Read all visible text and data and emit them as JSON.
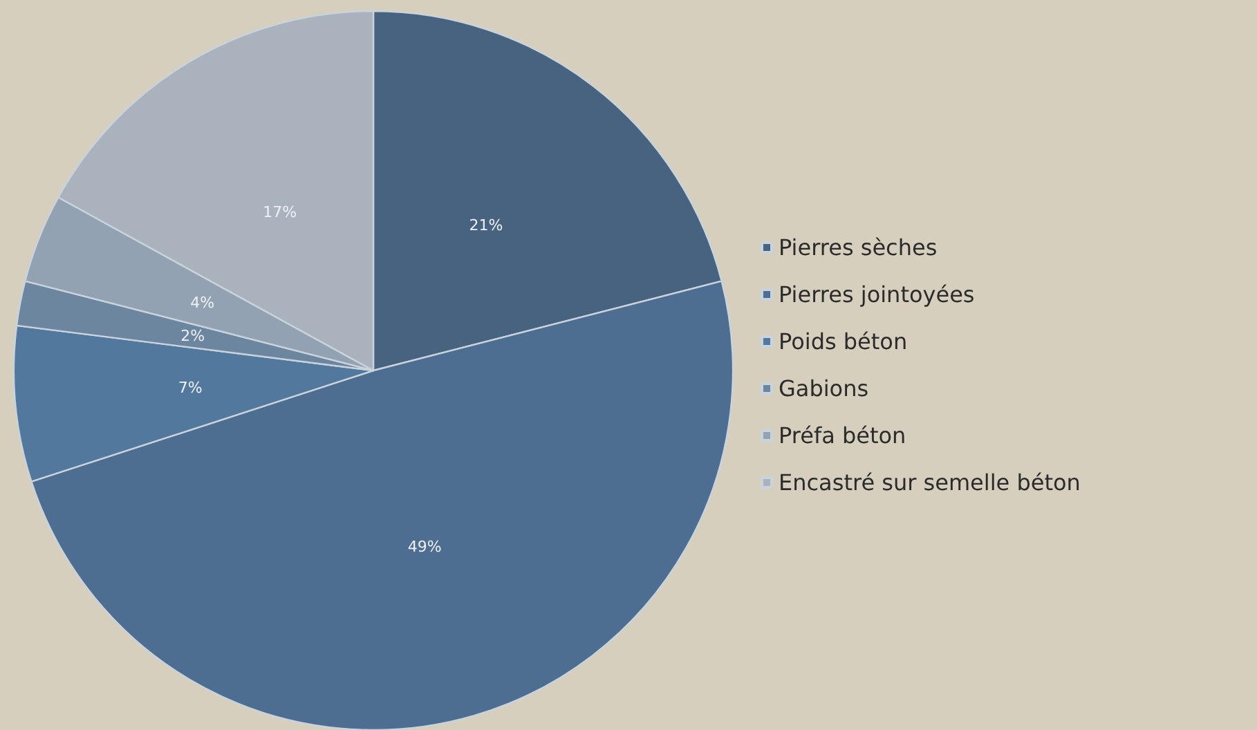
{
  "chart_data": {
    "type": "pie",
    "categories": [
      "Pierres sèches",
      "Pierres jointoyées",
      "Poids béton",
      "Gabions",
      "Préfa béton",
      "Encastré sur semelle béton"
    ],
    "values": [
      21,
      49,
      7,
      2,
      4,
      17
    ],
    "colors": [
      "#48637f",
      "#4d6e91",
      "#52789d",
      "#6d86a0",
      "#93a2b2",
      "#aab3bd"
    ],
    "value_labels": [
      "21%",
      "49%",
      "7%",
      "2%",
      "4%",
      "17%"
    ],
    "legend": "right"
  }
}
